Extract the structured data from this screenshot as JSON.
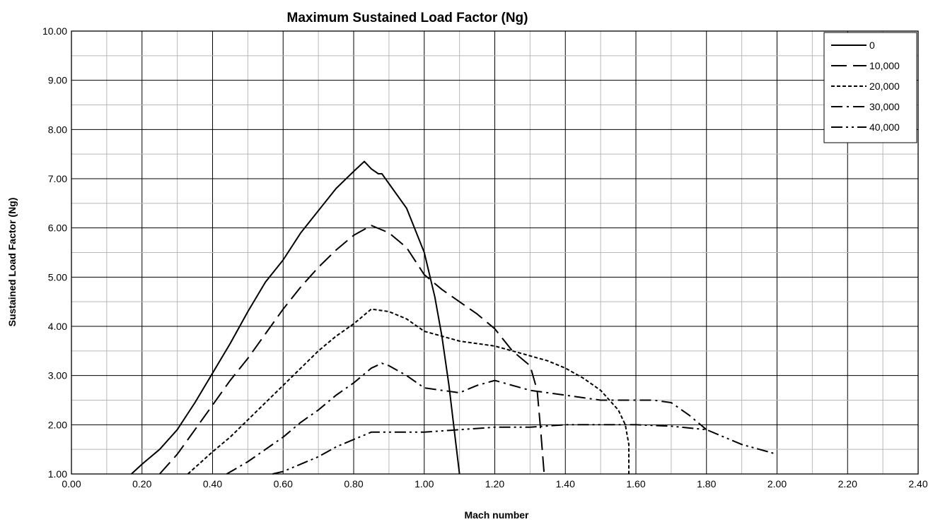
{
  "chart_data": {
    "type": "line",
    "title": "Maximum Sustained Load Factor (Ng)",
    "xlabel": "Mach number",
    "ylabel": "Sustained Load Factor (Ng)",
    "xlim": [
      0,
      2.4
    ],
    "ylim": [
      1,
      10
    ],
    "x_ticks": [
      "0.00",
      "0.20",
      "0.40",
      "0.60",
      "0.80",
      "1.00",
      "1.20",
      "1.40",
      "1.60",
      "1.80",
      "2.00",
      "2.20",
      "2.40"
    ],
    "y_ticks": [
      "1.00",
      "2.00",
      "3.00",
      "4.00",
      "5.00",
      "6.00",
      "7.00",
      "8.00",
      "9.00",
      "10.00"
    ],
    "grid": true,
    "minor_grid": true,
    "legend_position": "top-right",
    "series": [
      {
        "name": "0",
        "dash": "solid",
        "points": [
          [
            0.17,
            1.0
          ],
          [
            0.2,
            1.2
          ],
          [
            0.25,
            1.5
          ],
          [
            0.3,
            1.9
          ],
          [
            0.35,
            2.45
          ],
          [
            0.4,
            3.05
          ],
          [
            0.45,
            3.65
          ],
          [
            0.5,
            4.3
          ],
          [
            0.55,
            4.9
          ],
          [
            0.6,
            5.35
          ],
          [
            0.65,
            5.9
          ],
          [
            0.7,
            6.35
          ],
          [
            0.75,
            6.8
          ],
          [
            0.8,
            7.15
          ],
          [
            0.83,
            7.35
          ],
          [
            0.85,
            7.2
          ],
          [
            0.87,
            7.1
          ],
          [
            0.88,
            7.1
          ],
          [
            0.9,
            6.9
          ],
          [
            0.95,
            6.4
          ],
          [
            1.0,
            5.5
          ],
          [
            1.03,
            4.6
          ],
          [
            1.05,
            3.8
          ],
          [
            1.07,
            2.8
          ],
          [
            1.09,
            1.6
          ],
          [
            1.1,
            1.0
          ]
        ]
      },
      {
        "name": "10,000",
        "dash": "long-dash",
        "points": [
          [
            0.25,
            1.0
          ],
          [
            0.3,
            1.4
          ],
          [
            0.35,
            1.9
          ],
          [
            0.4,
            2.4
          ],
          [
            0.45,
            2.9
          ],
          [
            0.5,
            3.35
          ],
          [
            0.55,
            3.85
          ],
          [
            0.6,
            4.35
          ],
          [
            0.65,
            4.8
          ],
          [
            0.7,
            5.2
          ],
          [
            0.75,
            5.55
          ],
          [
            0.8,
            5.85
          ],
          [
            0.85,
            6.05
          ],
          [
            0.9,
            5.9
          ],
          [
            0.95,
            5.6
          ],
          [
            1.0,
            5.05
          ],
          [
            1.05,
            4.75
          ],
          [
            1.1,
            4.5
          ],
          [
            1.15,
            4.25
          ],
          [
            1.2,
            3.95
          ],
          [
            1.25,
            3.5
          ],
          [
            1.3,
            3.2
          ],
          [
            1.32,
            2.7
          ],
          [
            1.33,
            1.9
          ],
          [
            1.34,
            1.0
          ]
        ]
      },
      {
        "name": "20,000",
        "dash": "short-dash",
        "points": [
          [
            0.33,
            1.0
          ],
          [
            0.4,
            1.45
          ],
          [
            0.45,
            1.75
          ],
          [
            0.5,
            2.1
          ],
          [
            0.55,
            2.45
          ],
          [
            0.6,
            2.8
          ],
          [
            0.65,
            3.15
          ],
          [
            0.7,
            3.5
          ],
          [
            0.75,
            3.8
          ],
          [
            0.8,
            4.05
          ],
          [
            0.85,
            4.35
          ],
          [
            0.9,
            4.3
          ],
          [
            0.95,
            4.15
          ],
          [
            1.0,
            3.9
          ],
          [
            1.05,
            3.8
          ],
          [
            1.1,
            3.7
          ],
          [
            1.15,
            3.65
          ],
          [
            1.2,
            3.6
          ],
          [
            1.25,
            3.5
          ],
          [
            1.3,
            3.4
          ],
          [
            1.35,
            3.3
          ],
          [
            1.4,
            3.15
          ],
          [
            1.45,
            2.95
          ],
          [
            1.5,
            2.7
          ],
          [
            1.55,
            2.3
          ],
          [
            1.57,
            2.0
          ],
          [
            1.58,
            1.6
          ],
          [
            1.58,
            1.0
          ]
        ]
      },
      {
        "name": "30,000",
        "dash": "dash-dot",
        "points": [
          [
            0.44,
            1.0
          ],
          [
            0.5,
            1.25
          ],
          [
            0.55,
            1.5
          ],
          [
            0.6,
            1.75
          ],
          [
            0.65,
            2.05
          ],
          [
            0.7,
            2.3
          ],
          [
            0.75,
            2.6
          ],
          [
            0.8,
            2.85
          ],
          [
            0.85,
            3.15
          ],
          [
            0.88,
            3.25
          ],
          [
            0.9,
            3.2
          ],
          [
            0.95,
            3.0
          ],
          [
            1.0,
            2.75
          ],
          [
            1.05,
            2.7
          ],
          [
            1.1,
            2.65
          ],
          [
            1.15,
            2.8
          ],
          [
            1.2,
            2.9
          ],
          [
            1.25,
            2.8
          ],
          [
            1.3,
            2.7
          ],
          [
            1.35,
            2.65
          ],
          [
            1.4,
            2.6
          ],
          [
            1.45,
            2.55
          ],
          [
            1.5,
            2.5
          ],
          [
            1.6,
            2.5
          ],
          [
            1.65,
            2.5
          ],
          [
            1.7,
            2.45
          ],
          [
            1.75,
            2.2
          ],
          [
            1.8,
            1.9
          ]
        ]
      },
      {
        "name": "40,000",
        "dash": "dash-dot-dot",
        "points": [
          [
            0.57,
            1.0
          ],
          [
            0.6,
            1.05
          ],
          [
            0.65,
            1.2
          ],
          [
            0.7,
            1.35
          ],
          [
            0.75,
            1.55
          ],
          [
            0.8,
            1.7
          ],
          [
            0.85,
            1.85
          ],
          [
            0.9,
            1.85
          ],
          [
            1.0,
            1.85
          ],
          [
            1.1,
            1.9
          ],
          [
            1.2,
            1.95
          ],
          [
            1.3,
            1.95
          ],
          [
            1.4,
            2.0
          ],
          [
            1.5,
            2.0
          ],
          [
            1.6,
            2.0
          ],
          [
            1.7,
            1.97
          ],
          [
            1.8,
            1.9
          ],
          [
            1.85,
            1.75
          ],
          [
            1.9,
            1.6
          ],
          [
            1.95,
            1.5
          ],
          [
            2.0,
            1.4
          ]
        ]
      }
    ]
  }
}
